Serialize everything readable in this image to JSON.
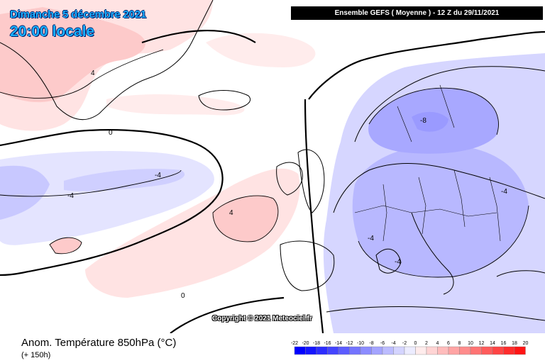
{
  "header": {
    "date": "Dimanche 5 décembre 2021",
    "time": "20:00 locale",
    "run_info": "Ensemble GEFS  ( Moyenne )  -  12 Z du 29/11/2021"
  },
  "footer": {
    "field": "Anom. Température 850hPa (°C)",
    "lead": "(+ 150h)",
    "copyright": "Copyright © 2021 Meteociel.fr"
  },
  "legend": {
    "ticks": [
      "-22",
      "-20",
      "-18",
      "-16",
      "-14",
      "-12",
      "-10",
      "-8",
      "-6",
      "-4",
      "-2",
      "0",
      "2",
      "4",
      "6",
      "8",
      "10",
      "12",
      "14",
      "16",
      "18",
      "20"
    ],
    "colors": [
      "#0000ff",
      "#1414ff",
      "#2c2cff",
      "#4444ff",
      "#5c5cff",
      "#7474ff",
      "#8c8cff",
      "#a4a4ff",
      "#bcbcff",
      "#d4d4ff",
      "#ececff",
      "#ffecec",
      "#ffd4d4",
      "#ffbcbc",
      "#ffa4a4",
      "#ff8c8c",
      "#ff7474",
      "#ff5c5c",
      "#ff4444",
      "#ff2c2c",
      "#ff1414"
    ]
  },
  "contour_labels": {
    "greenland_pos": "4",
    "greenland_zero": "0",
    "atlantic_neg": "-4",
    "atlantic_neg2": "-4",
    "iberia_pos": "4",
    "south_zero": "0",
    "scandinavia_neg": "-8",
    "europe_neg": "-4",
    "italy_neg": "-4",
    "east_neg": "-4"
  }
}
